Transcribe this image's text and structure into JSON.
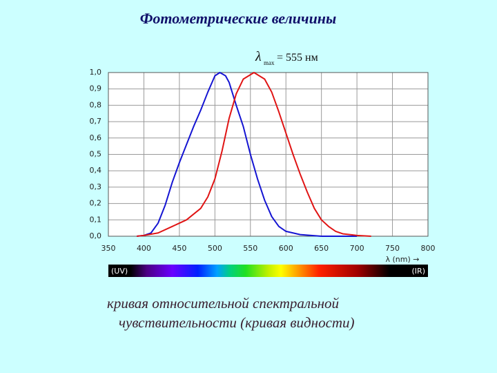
{
  "chart_data": {
    "type": "line",
    "title": "Фотометрические величины",
    "annotation": {
      "symbol": "λ",
      "subscript": "max",
      "text": "= 555 нм"
    },
    "x_label": "λ (nm) →",
    "spectrum_labels": [
      "(UV)",
      "(IR)"
    ],
    "xlim": [
      350,
      800
    ],
    "xticks": [
      350,
      400,
      450,
      500,
      550,
      600,
      650,
      700,
      750,
      800
    ],
    "ylim": [
      0,
      1
    ],
    "yticks": [
      {
        "value": 0,
        "label": "0,0"
      },
      {
        "value": 0.1,
        "label": "0,1"
      },
      {
        "value": 0.2,
        "label": "0,2"
      },
      {
        "value": 0.3,
        "label": "0,3"
      },
      {
        "value": 0.4,
        "label": "0,4"
      },
      {
        "value": 0.5,
        "label": "0,5"
      },
      {
        "value": 0.6,
        "label": "0,6"
      },
      {
        "value": 0.7,
        "label": "0,7"
      },
      {
        "value": 0.8,
        "label": "0,8"
      },
      {
        "value": 0.9,
        "label": "0,9"
      },
      {
        "value": 1,
        "label": "1,0"
      }
    ],
    "grid": true,
    "series": [
      {
        "color": "#1414d2",
        "x": [
          390,
          400,
          410,
          420,
          430,
          440,
          450,
          460,
          470,
          480,
          490,
          500,
          507,
          515,
          520,
          530,
          540,
          550,
          560,
          570,
          580,
          590,
          600,
          620,
          650,
          700
        ],
        "values": [
          0,
          0.005,
          0.02,
          0.08,
          0.19,
          0.33,
          0.45,
          0.56,
          0.67,
          0.77,
          0.88,
          0.98,
          1.0,
          0.98,
          0.94,
          0.8,
          0.67,
          0.5,
          0.35,
          0.22,
          0.12,
          0.06,
          0.03,
          0.01,
          0,
          0
        ]
      },
      {
        "color": "#e01414",
        "x": [
          390,
          400,
          420,
          440,
          460,
          480,
          490,
          500,
          510,
          520,
          530,
          540,
          555,
          570,
          580,
          590,
          600,
          610,
          620,
          630,
          640,
          650,
          660,
          670,
          680,
          700,
          720
        ],
        "values": [
          0,
          0.005,
          0.02,
          0.06,
          0.1,
          0.17,
          0.24,
          0.35,
          0.52,
          0.72,
          0.87,
          0.96,
          1.0,
          0.96,
          0.88,
          0.76,
          0.63,
          0.5,
          0.38,
          0.27,
          0.17,
          0.1,
          0.06,
          0.03,
          0.015,
          0.005,
          0
        ]
      }
    ]
  },
  "caption": [
    "кривая относительной спектральной",
    "чувствительности  (кривая видности)"
  ]
}
